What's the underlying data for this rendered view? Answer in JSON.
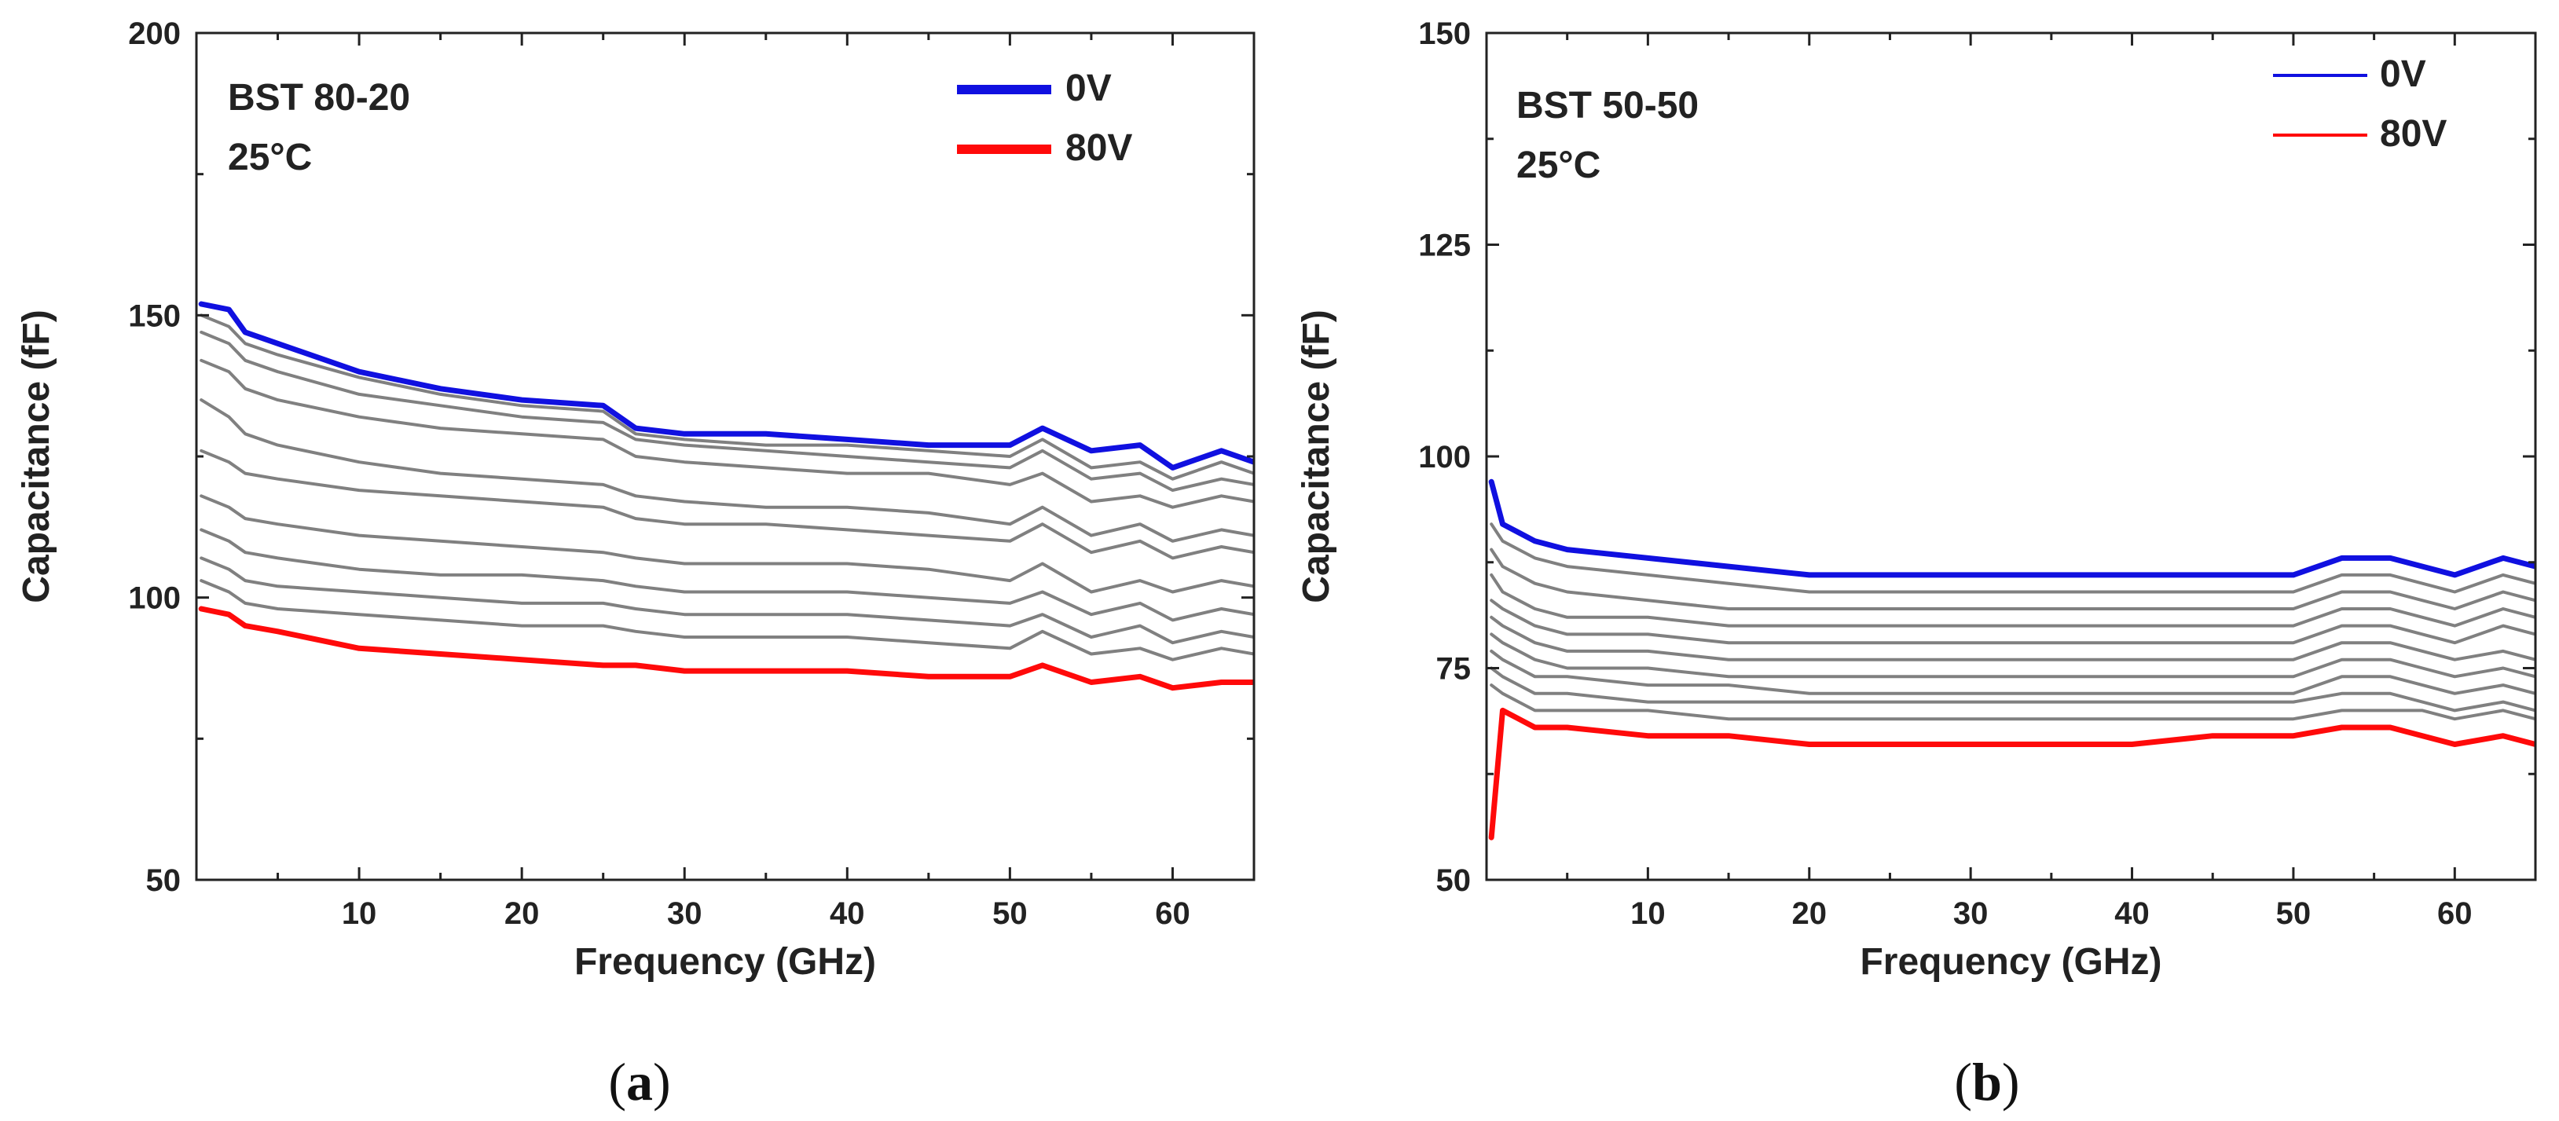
{
  "chart_data": [
    {
      "type": "line",
      "panel_caption": "a",
      "xlabel": "Frequency (GHz)",
      "ylabel": "Capacitance (fF)",
      "xlim": [
        0,
        65
      ],
      "ylim": [
        50,
        200
      ],
      "x_ticks": [
        10,
        20,
        30,
        40,
        50,
        60
      ],
      "y_ticks": [
        50,
        100,
        150,
        200
      ],
      "annotation": [
        "BST 80-20",
        "25°C"
      ],
      "legend": [
        {
          "name": "0V",
          "color": "#1010e0"
        },
        {
          "name": "80V",
          "color": "#ff0a0a"
        }
      ],
      "legend_position": "top-right",
      "intermediate_color": "#808080",
      "x": [
        0.3,
        2,
        3,
        5,
        10,
        15,
        20,
        25,
        27,
        30,
        35,
        40,
        45,
        50,
        52,
        55,
        58,
        60,
        63,
        65
      ],
      "series": [
        {
          "name": "0V",
          "color": "#1010e0",
          "values": [
            152,
            151,
            147,
            145,
            140,
            137,
            135,
            134,
            130,
            129,
            129,
            128,
            127,
            127,
            130,
            126,
            127,
            123,
            126,
            124
          ]
        },
        {
          "name": "",
          "color": "#808080",
          "values": [
            150,
            148,
            145,
            143,
            139,
            136,
            134,
            133,
            129,
            128,
            127,
            127,
            126,
            125,
            128,
            123,
            124,
            121,
            124,
            122
          ]
        },
        {
          "name": "",
          "color": "#808080",
          "values": [
            147,
            145,
            142,
            140,
            136,
            134,
            132,
            131,
            128,
            127,
            126,
            125,
            124,
            123,
            126,
            121,
            122,
            119,
            121,
            120
          ]
        },
        {
          "name": "",
          "color": "#808080",
          "values": [
            142,
            140,
            137,
            135,
            132,
            130,
            129,
            128,
            125,
            124,
            123,
            122,
            122,
            120,
            122,
            117,
            118,
            116,
            118,
            117
          ]
        },
        {
          "name": "",
          "color": "#808080",
          "values": [
            135,
            132,
            129,
            127,
            124,
            122,
            121,
            120,
            118,
            117,
            116,
            116,
            115,
            113,
            116,
            111,
            113,
            110,
            112,
            111
          ]
        },
        {
          "name": "",
          "color": "#808080",
          "values": [
            126,
            124,
            122,
            121,
            119,
            118,
            117,
            116,
            114,
            113,
            113,
            112,
            111,
            110,
            113,
            108,
            110,
            107,
            109,
            108
          ]
        },
        {
          "name": "",
          "color": "#808080",
          "values": [
            118,
            116,
            114,
            113,
            111,
            110,
            109,
            108,
            107,
            106,
            106,
            106,
            105,
            103,
            106,
            101,
            103,
            101,
            103,
            102
          ]
        },
        {
          "name": "",
          "color": "#808080",
          "values": [
            112,
            110,
            108,
            107,
            105,
            104,
            104,
            103,
            102,
            101,
            101,
            101,
            100,
            99,
            101,
            97,
            99,
            96,
            98,
            97
          ]
        },
        {
          "name": "",
          "color": "#808080",
          "values": [
            107,
            105,
            103,
            102,
            101,
            100,
            99,
            99,
            98,
            97,
            97,
            97,
            96,
            95,
            97,
            93,
            95,
            92,
            94,
            93
          ]
        },
        {
          "name": "",
          "color": "#808080",
          "values": [
            103,
            101,
            99,
            98,
            97,
            96,
            95,
            95,
            94,
            93,
            93,
            93,
            92,
            91,
            94,
            90,
            91,
            89,
            91,
            90
          ]
        },
        {
          "name": "80V",
          "color": "#ff0a0a",
          "values": [
            98,
            97,
            95,
            94,
            91,
            90,
            89,
            88,
            88,
            87,
            87,
            87,
            86,
            86,
            88,
            85,
            86,
            84,
            85,
            85
          ]
        }
      ]
    },
    {
      "type": "line",
      "panel_caption": "b",
      "xlabel": "Frequency (GHz)",
      "ylabel": "Capacitance (fF)",
      "xlim": [
        0,
        65
      ],
      "ylim": [
        50,
        150
      ],
      "x_ticks": [
        10,
        20,
        30,
        40,
        50,
        60
      ],
      "y_ticks": [
        50,
        75,
        100,
        125,
        150
      ],
      "annotation": [
        "BST 50-50",
        "25°C"
      ],
      "legend": [
        {
          "name": "0V",
          "color": "#1010e0"
        },
        {
          "name": "80V",
          "color": "#ff0a0a"
        }
      ],
      "legend_position": "top-right",
      "intermediate_color": "#808080",
      "x": [
        0.3,
        1,
        2,
        3,
        5,
        10,
        15,
        20,
        25,
        30,
        35,
        40,
        45,
        50,
        53,
        56,
        58,
        60,
        63,
        65
      ],
      "series": [
        {
          "name": "0V",
          "color": "#1010e0",
          "values": [
            97,
            92,
            91,
            90,
            89,
            88,
            87,
            86,
            86,
            86,
            86,
            86,
            86,
            86,
            88,
            88,
            87,
            86,
            88,
            87
          ]
        },
        {
          "name": "",
          "color": "#808080",
          "values": [
            92,
            90,
            89,
            88,
            87,
            86,
            85,
            84,
            84,
            84,
            84,
            84,
            84,
            84,
            86,
            86,
            85,
            84,
            86,
            85
          ]
        },
        {
          "name": "",
          "color": "#808080",
          "values": [
            89,
            87,
            86,
            85,
            84,
            83,
            82,
            82,
            82,
            82,
            82,
            82,
            82,
            82,
            84,
            84,
            83,
            82,
            84,
            83
          ]
        },
        {
          "name": "",
          "color": "#808080",
          "values": [
            86,
            84,
            83,
            82,
            81,
            81,
            80,
            80,
            80,
            80,
            80,
            80,
            80,
            80,
            82,
            82,
            81,
            80,
            82,
            81
          ]
        },
        {
          "name": "",
          "color": "#808080",
          "values": [
            83,
            82,
            81,
            80,
            79,
            79,
            78,
            78,
            78,
            78,
            78,
            78,
            78,
            78,
            80,
            80,
            79,
            78,
            80,
            79
          ]
        },
        {
          "name": "",
          "color": "#808080",
          "values": [
            81,
            80,
            79,
            78,
            77,
            77,
            76,
            76,
            76,
            76,
            76,
            76,
            76,
            76,
            78,
            78,
            77,
            76,
            77,
            76
          ]
        },
        {
          "name": "",
          "color": "#808080",
          "values": [
            79,
            78,
            77,
            76,
            75,
            75,
            74,
            74,
            74,
            74,
            74,
            74,
            74,
            74,
            76,
            76,
            75,
            74,
            75,
            74
          ]
        },
        {
          "name": "",
          "color": "#808080",
          "values": [
            77,
            76,
            75,
            74,
            74,
            73,
            73,
            72,
            72,
            72,
            72,
            72,
            72,
            72,
            74,
            74,
            73,
            72,
            73,
            72
          ]
        },
        {
          "name": "",
          "color": "#808080",
          "values": [
            75,
            74,
            73,
            72,
            72,
            71,
            71,
            71,
            71,
            71,
            71,
            71,
            71,
            71,
            72,
            72,
            71,
            70,
            71,
            70
          ]
        },
        {
          "name": "",
          "color": "#808080",
          "values": [
            73,
            72,
            71,
            70,
            70,
            70,
            69,
            69,
            69,
            69,
            69,
            69,
            69,
            69,
            70,
            70,
            70,
            69,
            70,
            69
          ]
        },
        {
          "name": "80V",
          "color": "#ff0a0a",
          "values": [
            55,
            70,
            69,
            68,
            68,
            67,
            67,
            66,
            66,
            66,
            66,
            66,
            67,
            67,
            68,
            68,
            67,
            66,
            67,
            66
          ]
        }
      ]
    }
  ]
}
